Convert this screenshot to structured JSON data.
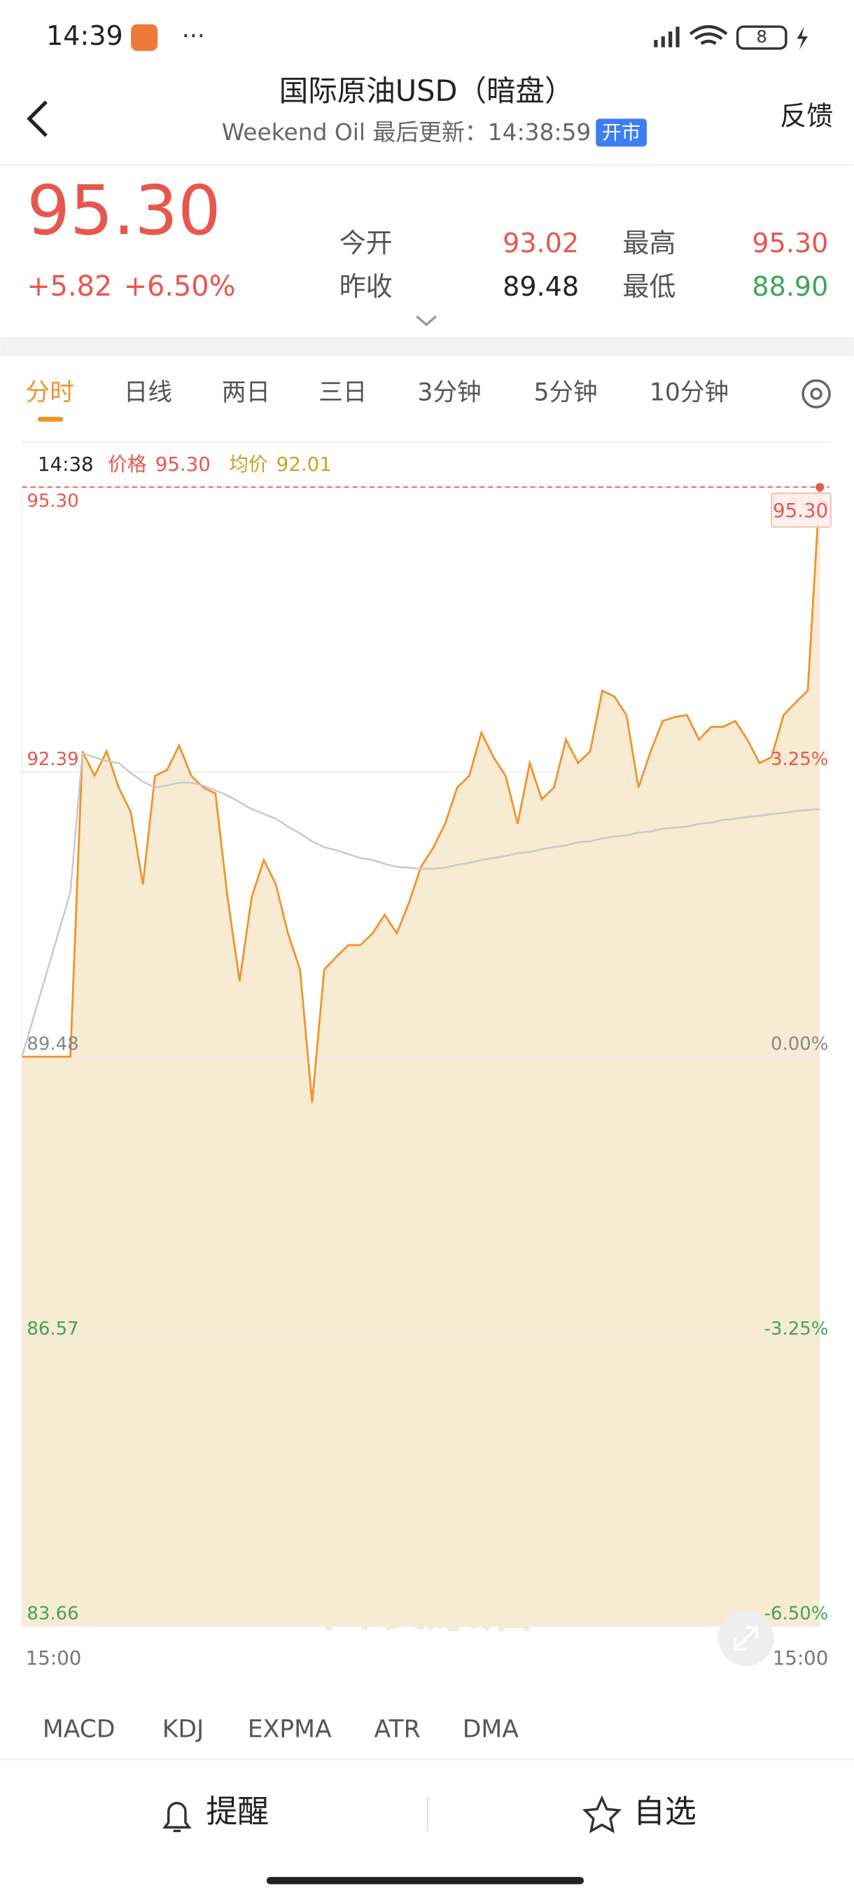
{
  "status_bar": {
    "time": "14:39",
    "battery": "8"
  },
  "header": {
    "title": "国际原油USD（暗盘）",
    "subtitle": "Weekend Oil 最后更新：14:38:59",
    "badge": "开市",
    "feedback": "反馈"
  },
  "quote": {
    "price": "95.30",
    "change": "+5.82",
    "change_pct": "+6.50%",
    "stats": [
      {
        "label": "今开",
        "value": "93.02"
      },
      {
        "label": "最高",
        "value": "95.30"
      },
      {
        "label": "昨收",
        "value": "89.48"
      },
      {
        "label": "最低",
        "value": "88.90"
      }
    ]
  },
  "tabs": [
    "分时",
    "日线",
    "两日",
    "三日",
    "3分钟",
    "5分钟",
    "10分钟"
  ],
  "chart_data": {
    "type": "line",
    "tooltip": {
      "time": "14:38",
      "price": "95.30",
      "avg": "92.01"
    },
    "last_price_label": "95.30",
    "watermark": "口袋原油",
    "x_labels": [
      "15:00",
      "15:00"
    ],
    "ylim": [
      83.66,
      95.3
    ],
    "yticks": [
      {
        "value": 83.66,
        "label": "83.66"
      },
      {
        "value": 86.57,
        "label": "86.57"
      },
      {
        "value": 89.48,
        "label": "89.48"
      },
      {
        "value": 92.39,
        "label": "92.39"
      },
      {
        "value": 95.3,
        "label": "95.30"
      }
    ],
    "y2lim": [
      -6.5,
      6.5
    ],
    "y2ticks": [
      {
        "value": -6.5,
        "label": "-6.50%"
      },
      {
        "value": -3.25,
        "label": "-3.25%"
      },
      {
        "value": 0,
        "label": "0.00%"
      },
      {
        "value": 3.25,
        "label": "3.25%"
      },
      {
        "value": 6.5,
        "label": "6.50%"
      }
    ],
    "grid": true,
    "series": [
      {
        "name": "价格",
        "color": "#f0932b",
        "values": [
          89.48,
          89.48,
          89.48,
          89.48,
          89.48,
          92.6,
          92.35,
          92.6,
          92.23,
          91.98,
          91.24,
          92.35,
          92.41,
          92.66,
          92.35,
          92.23,
          92.17,
          91.11,
          90.25,
          91.11,
          91.49,
          91.24,
          90.74,
          90.37,
          89.01,
          90.37,
          90.5,
          90.62,
          90.62,
          90.74,
          90.93,
          90.74,
          91.05,
          91.42,
          91.61,
          91.86,
          92.23,
          92.35,
          92.79,
          92.54,
          92.35,
          91.86,
          92.48,
          92.11,
          92.23,
          92.72,
          92.48,
          92.6,
          93.22,
          93.16,
          92.97,
          92.23,
          92.6,
          92.91,
          92.95,
          92.97,
          92.72,
          92.85,
          92.85,
          92.91,
          92.72,
          92.48,
          92.54,
          92.97,
          93.1,
          93.22,
          95.3
        ]
      },
      {
        "name": "均价",
        "color": "#c8c8c8",
        "values": [
          89.48,
          89.9,
          90.32,
          90.74,
          91.16,
          92.58,
          92.54,
          92.5,
          92.48,
          92.38,
          92.29,
          92.23,
          92.25,
          92.28,
          92.28,
          92.25,
          92.2,
          92.15,
          92.08,
          92.01,
          91.96,
          91.91,
          91.83,
          91.76,
          91.68,
          91.62,
          91.59,
          91.55,
          91.51,
          91.49,
          91.45,
          91.42,
          91.41,
          91.4,
          91.4,
          91.41,
          91.44,
          91.46,
          91.49,
          91.51,
          91.53,
          91.56,
          91.57,
          91.6,
          91.62,
          91.64,
          91.67,
          91.68,
          91.71,
          91.73,
          91.74,
          91.77,
          91.78,
          91.81,
          91.82,
          91.83,
          91.86,
          91.87,
          91.9,
          91.91,
          91.93,
          91.94,
          91.96,
          91.97,
          91.99,
          92.0,
          92.01
        ]
      }
    ]
  },
  "indicators": [
    "MACD",
    "KDJ",
    "EXPMA",
    "ATR",
    "DMA"
  ],
  "actions": [
    "提醒",
    "自选"
  ]
}
